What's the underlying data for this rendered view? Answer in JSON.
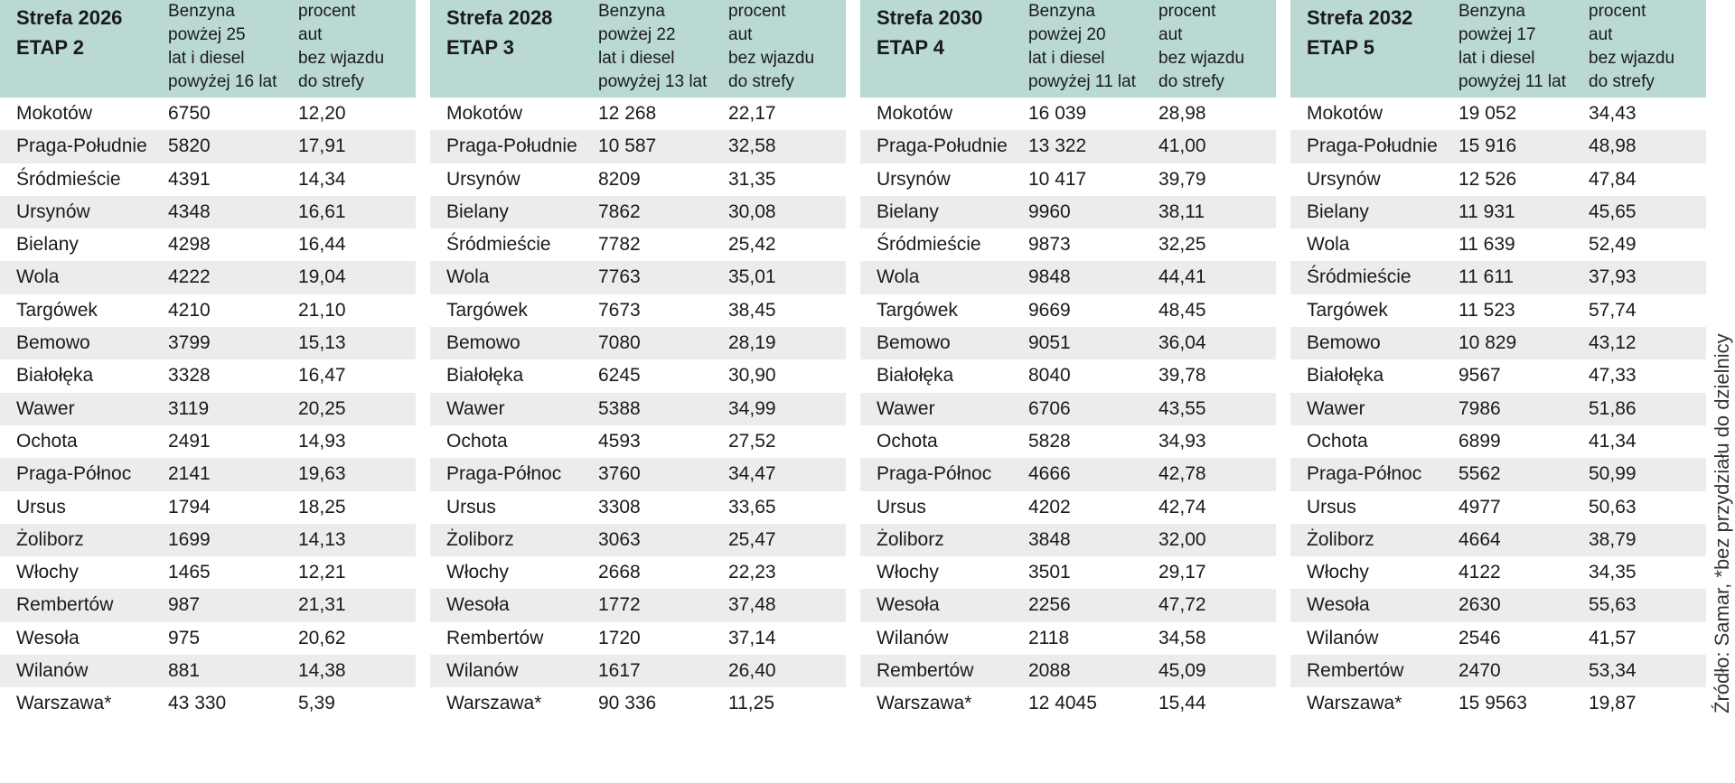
{
  "colors": {
    "header_bg": "#b9d9d2",
    "alt_row_bg": "#ececec"
  },
  "source_note": "Źródło: Samar, *bez przydziału do dzielnicy",
  "chart_data": {
    "type": "table",
    "zones": [
      {
        "title_line1": "Strefa 2026",
        "title_line2": "ETAP 2",
        "col1_header": [
          "Benzyna",
          "powżej 25",
          "lat i diesel",
          "powyżej 16 lat"
        ],
        "col2_header": [
          "procent",
          "aut",
          "bez wjazdu",
          "do strefy"
        ],
        "rows": [
          [
            "Mokotów",
            "6750",
            "12,20"
          ],
          [
            "Praga-Południe",
            "5820",
            "17,91"
          ],
          [
            "Śródmieście",
            "4391",
            "14,34"
          ],
          [
            "Ursynów",
            "4348",
            "16,61"
          ],
          [
            "Bielany",
            "4298",
            "16,44"
          ],
          [
            "Wola",
            "4222",
            "19,04"
          ],
          [
            "Targówek",
            "4210",
            "21,10"
          ],
          [
            "Bemowo",
            "3799",
            "15,13"
          ],
          [
            "Białołęka",
            "3328",
            "16,47"
          ],
          [
            "Wawer",
            "3119",
            "20,25"
          ],
          [
            "Ochota",
            "2491",
            "14,93"
          ],
          [
            "Praga-Północ",
            "2141",
            "19,63"
          ],
          [
            "Ursus",
            "1794",
            "18,25"
          ],
          [
            "Żoliborz",
            "1699",
            "14,13"
          ],
          [
            "Włochy",
            "1465",
            "12,21"
          ],
          [
            "Rembertów",
            "987",
            "21,31"
          ],
          [
            "Wesoła",
            "975",
            "20,62"
          ],
          [
            "Wilanów",
            "881",
            "14,38"
          ],
          [
            "Warszawa*",
            "43 330",
            "5,39"
          ]
        ]
      },
      {
        "title_line1": "Strefa 2028",
        "title_line2": "ETAP 3",
        "col1_header": [
          "Benzyna",
          "powżej 22",
          "lat i diesel",
          "powyżej 13 lat"
        ],
        "col2_header": [
          "procent",
          "aut",
          "bez wjazdu",
          "do strefy"
        ],
        "rows": [
          [
            "Mokotów",
            "12 268",
            "22,17"
          ],
          [
            "Praga-Południe",
            "10 587",
            "32,58"
          ],
          [
            "Ursynów",
            "8209",
            "31,35"
          ],
          [
            "Bielany",
            "7862",
            "30,08"
          ],
          [
            "Śródmieście",
            "7782",
            "25,42"
          ],
          [
            "Wola",
            "7763",
            "35,01"
          ],
          [
            "Targówek",
            "7673",
            "38,45"
          ],
          [
            "Bemowo",
            "7080",
            "28,19"
          ],
          [
            "Białołęka",
            "6245",
            "30,90"
          ],
          [
            "Wawer",
            "5388",
            "34,99"
          ],
          [
            "Ochota",
            "4593",
            "27,52"
          ],
          [
            "Praga-Północ",
            "3760",
            "34,47"
          ],
          [
            "Ursus",
            "3308",
            "33,65"
          ],
          [
            "Żoliborz",
            "3063",
            "25,47"
          ],
          [
            "Włochy",
            "2668",
            "22,23"
          ],
          [
            "Wesoła",
            "1772",
            "37,48"
          ],
          [
            "Rembertów",
            "1720",
            "37,14"
          ],
          [
            "Wilanów",
            "1617",
            "26,40"
          ],
          [
            "Warszawa*",
            "90 336",
            "11,25"
          ]
        ]
      },
      {
        "title_line1": "Strefa 2030",
        "title_line2": "ETAP 4",
        "col1_header": [
          "Benzyna",
          "powżej 20",
          "lat i diesel",
          "powyżej 11 lat"
        ],
        "col2_header": [
          "procent",
          "aut",
          "bez wjazdu",
          "do strefy"
        ],
        "rows": [
          [
            "Mokotów",
            "16 039",
            "28,98"
          ],
          [
            "Praga-Południe",
            "13 322",
            "41,00"
          ],
          [
            "Ursynów",
            "10 417",
            "39,79"
          ],
          [
            "Bielany",
            "9960",
            "38,11"
          ],
          [
            "Śródmieście",
            "9873",
            "32,25"
          ],
          [
            "Wola",
            "9848",
            "44,41"
          ],
          [
            "Targówek",
            "9669",
            "48,45"
          ],
          [
            "Bemowo",
            "9051",
            "36,04"
          ],
          [
            "Białołęka",
            "8040",
            "39,78"
          ],
          [
            "Wawer",
            "6706",
            "43,55"
          ],
          [
            "Ochota",
            "5828",
            "34,93"
          ],
          [
            "Praga-Północ",
            "4666",
            "42,78"
          ],
          [
            "Ursus",
            "4202",
            "42,74"
          ],
          [
            "Żoliborz",
            "3848",
            "32,00"
          ],
          [
            "Włochy",
            "3501",
            "29,17"
          ],
          [
            "Wesoła",
            "2256",
            "47,72"
          ],
          [
            "Wilanów",
            "2118",
            "34,58"
          ],
          [
            "Rembertów",
            "2088",
            "45,09"
          ],
          [
            "Warszawa*",
            "12 4045",
            "15,44"
          ]
        ]
      },
      {
        "title_line1": "Strefa 2032",
        "title_line2": "ETAP 5",
        "col1_header": [
          "Benzyna",
          "powżej 17",
          "lat i diesel",
          "powyżej 11 lat"
        ],
        "col2_header": [
          "procent",
          "aut",
          "bez wjazdu",
          "do strefy"
        ],
        "rows": [
          [
            "Mokotów",
            "19 052",
            "34,43"
          ],
          [
            "Praga-Południe",
            "15 916",
            "48,98"
          ],
          [
            "Ursynów",
            "12 526",
            "47,84"
          ],
          [
            "Bielany",
            "11 931",
            "45,65"
          ],
          [
            "Wola",
            "11 639",
            "52,49"
          ],
          [
            "Śródmieście",
            "11 611",
            "37,93"
          ],
          [
            "Targówek",
            "11 523",
            "57,74"
          ],
          [
            "Bemowo",
            "10 829",
            "43,12"
          ],
          [
            "Białołęka",
            "9567",
            "47,33"
          ],
          [
            "Wawer",
            "7986",
            "51,86"
          ],
          [
            "Ochota",
            "6899",
            "41,34"
          ],
          [
            "Praga-Północ",
            "5562",
            "50,99"
          ],
          [
            "Ursus",
            "4977",
            "50,63"
          ],
          [
            "Żoliborz",
            "4664",
            "38,79"
          ],
          [
            "Włochy",
            "4122",
            "34,35"
          ],
          [
            "Wesoła",
            "2630",
            "55,63"
          ],
          [
            "Wilanów",
            "2546",
            "41,57"
          ],
          [
            "Rembertów",
            "2470",
            "53,34"
          ],
          [
            "Warszawa*",
            "15 9563",
            "19,87"
          ]
        ]
      }
    ]
  }
}
